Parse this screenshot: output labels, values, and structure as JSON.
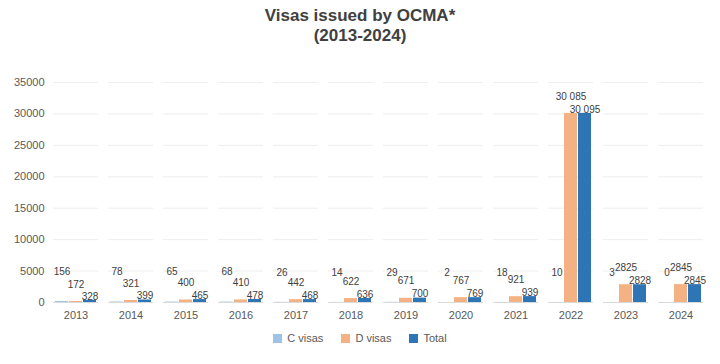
{
  "chart_data": {
    "type": "bar",
    "title": "Visas issued by OCMA*",
    "subtitle": "(2013-2024)",
    "categories": [
      "2013",
      "2014",
      "2015",
      "2016",
      "2017",
      "2018",
      "2019",
      "2020",
      "2021",
      "2022",
      "2023",
      "2024"
    ],
    "series": [
      {
        "name": "C visas",
        "color": "#9dc3e6",
        "values": [
          156,
          78,
          65,
          68,
          26,
          14,
          29,
          2,
          18,
          10,
          3,
          0
        ]
      },
      {
        "name": "D visas",
        "color": "#f4b183",
        "values": [
          172,
          321,
          400,
          410,
          442,
          622,
          671,
          767,
          921,
          30085,
          2825,
          2845
        ],
        "value_labels": [
          "172",
          "321",
          "400",
          "410",
          "442",
          "622",
          "671",
          "767",
          "921",
          "30 085",
          "2825",
          "2845"
        ]
      },
      {
        "name": "Total",
        "color": "#2e75b6",
        "values": [
          328,
          399,
          465,
          478,
          468,
          636,
          700,
          769,
          939,
          30095,
          2828,
          2845
        ],
        "value_labels": [
          "328",
          "399",
          "465",
          "478",
          "468",
          "636",
          "700",
          "769",
          "939",
          "30 095",
          "2828",
          "2845"
        ]
      }
    ],
    "ylim": [
      0,
      35000
    ],
    "yticks": [
      0,
      5000,
      10000,
      15000,
      20000,
      25000,
      30000,
      35000
    ],
    "grid": true,
    "legend": "bottom",
    "data_labels": true
  }
}
